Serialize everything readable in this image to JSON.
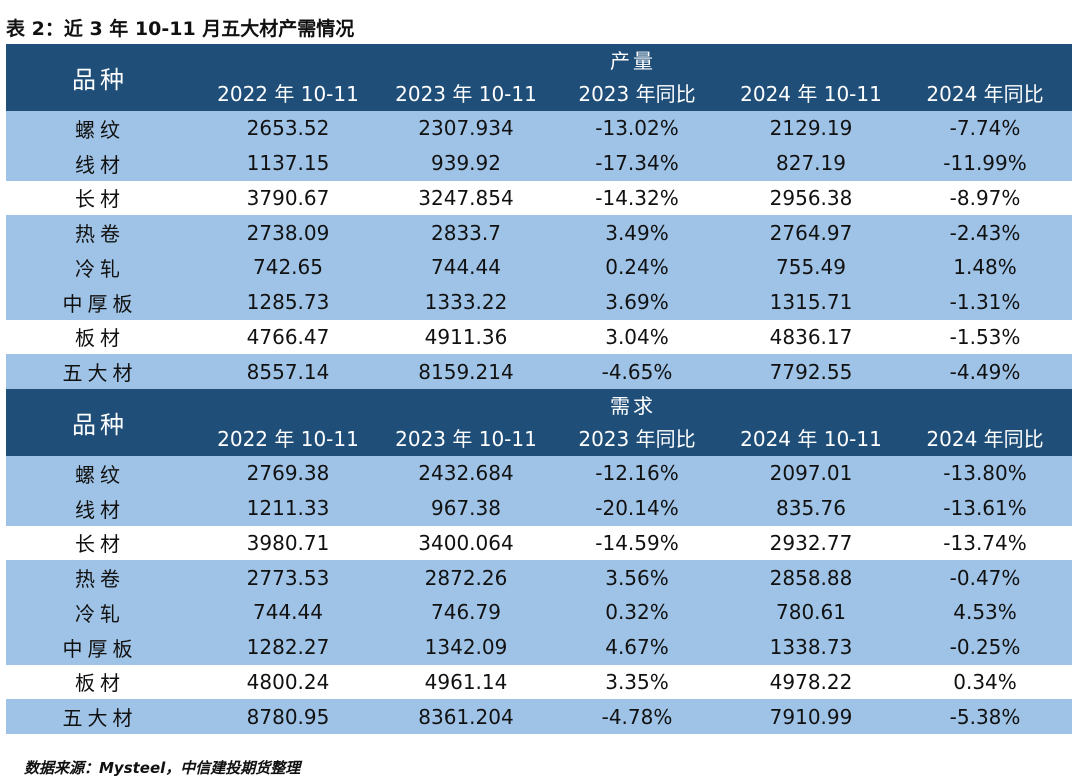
{
  "caption": "表 2：近 3 年 10-11 月五大材产需情况",
  "corner_label": "品种",
  "columns": [
    "2022 年 10-11",
    "2023 年 10-11",
    "2023 年同比",
    "2024 年 10-11",
    "2024 年同比"
  ],
  "sections": [
    {
      "title": "产量",
      "rows": [
        {
          "name": "螺纹",
          "v": [
            "2653.52",
            "2307.934",
            "-13.02%",
            "2129.19",
            "-7.74%"
          ]
        },
        {
          "name": "线材",
          "v": [
            "1137.15",
            "939.92",
            "-17.34%",
            "827.19",
            "-11.99%"
          ]
        },
        {
          "name": "长材",
          "v": [
            "3790.67",
            "3247.854",
            "-14.32%",
            "2956.38",
            "-8.97%"
          ]
        },
        {
          "name": "热卷",
          "v": [
            "2738.09",
            "2833.7",
            "3.49%",
            "2764.97",
            "-2.43%"
          ]
        },
        {
          "name": "冷轧",
          "v": [
            "742.65",
            "744.44",
            "0.24%",
            "755.49",
            "1.48%"
          ]
        },
        {
          "name": "中厚板",
          "v": [
            "1285.73",
            "1333.22",
            "3.69%",
            "1315.71",
            "-1.31%"
          ]
        },
        {
          "name": "板材",
          "v": [
            "4766.47",
            "4911.36",
            "3.04%",
            "4836.17",
            "-1.53%"
          ]
        },
        {
          "name": "五大材",
          "v": [
            "8557.14",
            "8159.214",
            "-4.65%",
            "7792.55",
            "-4.49%"
          ]
        }
      ]
    },
    {
      "title": "需求",
      "rows": [
        {
          "name": "螺纹",
          "v": [
            "2769.38",
            "2432.684",
            "-12.16%",
            "2097.01",
            "-13.80%"
          ]
        },
        {
          "name": "线材",
          "v": [
            "1211.33",
            "967.38",
            "-20.14%",
            "835.76",
            "-13.61%"
          ]
        },
        {
          "name": "长材",
          "v": [
            "3980.71",
            "3400.064",
            "-14.59%",
            "2932.77",
            "-13.74%"
          ]
        },
        {
          "name": "热卷",
          "v": [
            "2773.53",
            "2872.26",
            "3.56%",
            "2858.88",
            "-0.47%"
          ]
        },
        {
          "name": "冷轧",
          "v": [
            "744.44",
            "746.79",
            "0.32%",
            "780.61",
            "4.53%"
          ]
        },
        {
          "name": "中厚板",
          "v": [
            "1282.27",
            "1342.09",
            "4.67%",
            "1338.73",
            "-0.25%"
          ]
        },
        {
          "name": "板材",
          "v": [
            "4800.24",
            "4961.14",
            "3.35%",
            "4978.22",
            "0.34%"
          ]
        },
        {
          "name": "五大材",
          "v": [
            "8780.95",
            "8361.204",
            "-4.78%",
            "7910.99",
            "-5.38%"
          ]
        }
      ]
    }
  ],
  "row_shading": [
    "blue",
    "blue",
    "white",
    "blue",
    "blue",
    "blue",
    "white",
    "blue"
  ],
  "colors": {
    "header_bg": "#1f4e79",
    "row_blue": "#9fc3e6",
    "row_white": "#ffffff"
  },
  "source": "数据来源：Mysteel，中信建投期货整理"
}
